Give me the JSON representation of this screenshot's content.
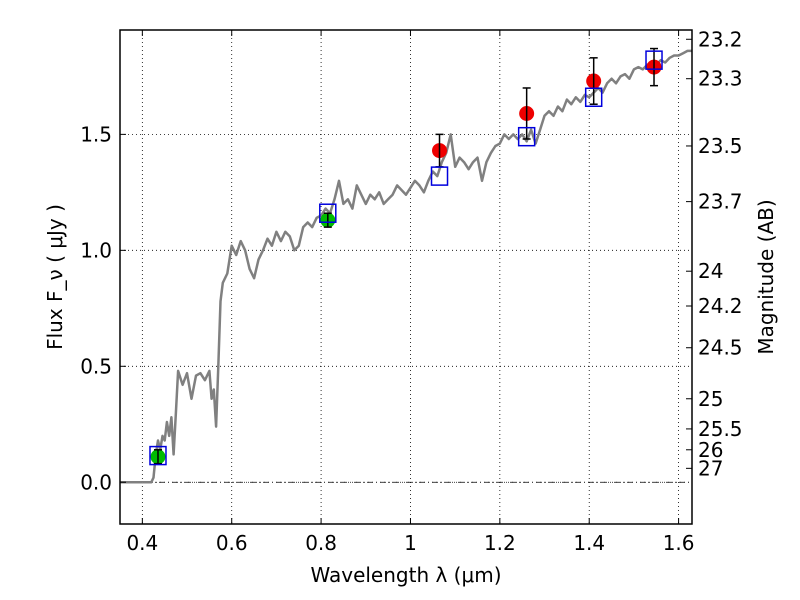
{
  "chart_data": {
    "type": "scatter",
    "xlabel": "Wavelength λ (μm)",
    "ylabel": "Flux F_ν ( μJy )",
    "ylabel_right": "Magnitude (AB)",
    "xlim": [
      0.35,
      1.63
    ],
    "ylim": [
      -0.18,
      1.95
    ],
    "grid": true,
    "x_ticks": [
      {
        "value": 0.4,
        "label": "0.4"
      },
      {
        "value": 0.6,
        "label": "0.6"
      },
      {
        "value": 0.8,
        "label": "0.8"
      },
      {
        "value": 1.0,
        "label": "1"
      },
      {
        "value": 1.2,
        "label": "1.2"
      },
      {
        "value": 1.4,
        "label": "1.4"
      },
      {
        "value": 1.6,
        "label": "1.6"
      }
    ],
    "y_ticks": [
      {
        "value": 0.0,
        "label": "0.0"
      },
      {
        "value": 0.5,
        "label": "0.5"
      },
      {
        "value": 1.0,
        "label": "1.0"
      },
      {
        "value": 1.5,
        "label": "1.5"
      }
    ],
    "right_ticks": [
      {
        "label": "23.2",
        "flux": 1.91
      },
      {
        "label": "23.3",
        "flux": 1.74
      },
      {
        "label": "23.5",
        "flux": 1.45
      },
      {
        "label": "23.7",
        "flux": 1.21
      },
      {
        "label": "24",
        "flux": 0.91
      },
      {
        "label": "24.2",
        "flux": 0.76
      },
      {
        "label": "24.5",
        "flux": 0.58
      },
      {
        "label": "25",
        "flux": 0.36
      },
      {
        "label": "25.5",
        "flux": 0.23
      },
      {
        "label": "26",
        "flux": 0.14
      },
      {
        "label": "27",
        "flux": 0.06
      }
    ],
    "model_spectrum": {
      "color": "#808080",
      "points": [
        [
          0.35,
          0.0
        ],
        [
          0.42,
          0.0
        ],
        [
          0.425,
          0.02
        ],
        [
          0.43,
          0.12
        ],
        [
          0.435,
          0.18
        ],
        [
          0.44,
          0.14
        ],
        [
          0.445,
          0.2
        ],
        [
          0.45,
          0.18
        ],
        [
          0.455,
          0.26
        ],
        [
          0.46,
          0.2
        ],
        [
          0.465,
          0.28
        ],
        [
          0.47,
          0.12
        ],
        [
          0.475,
          0.3
        ],
        [
          0.48,
          0.48
        ],
        [
          0.49,
          0.42
        ],
        [
          0.5,
          0.47
        ],
        [
          0.51,
          0.36
        ],
        [
          0.52,
          0.46
        ],
        [
          0.53,
          0.47
        ],
        [
          0.54,
          0.44
        ],
        [
          0.55,
          0.48
        ],
        [
          0.555,
          0.36
        ],
        [
          0.56,
          0.4
        ],
        [
          0.565,
          0.24
        ],
        [
          0.57,
          0.5
        ],
        [
          0.575,
          0.78
        ],
        [
          0.58,
          0.86
        ],
        [
          0.59,
          0.9
        ],
        [
          0.6,
          1.02
        ],
        [
          0.61,
          0.98
        ],
        [
          0.62,
          1.04
        ],
        [
          0.63,
          1.0
        ],
        [
          0.64,
          0.92
        ],
        [
          0.65,
          0.88
        ],
        [
          0.66,
          0.96
        ],
        [
          0.67,
          1.0
        ],
        [
          0.68,
          1.05
        ],
        [
          0.69,
          1.02
        ],
        [
          0.7,
          1.08
        ],
        [
          0.71,
          1.04
        ],
        [
          0.72,
          1.08
        ],
        [
          0.73,
          1.06
        ],
        [
          0.74,
          1.0
        ],
        [
          0.75,
          1.02
        ],
        [
          0.76,
          1.1
        ],
        [
          0.77,
          1.12
        ],
        [
          0.78,
          1.1
        ],
        [
          0.79,
          1.14
        ],
        [
          0.8,
          1.15
        ],
        [
          0.81,
          1.18
        ],
        [
          0.82,
          1.16
        ],
        [
          0.83,
          1.22
        ],
        [
          0.84,
          1.3
        ],
        [
          0.85,
          1.2
        ],
        [
          0.86,
          1.22
        ],
        [
          0.87,
          1.18
        ],
        [
          0.88,
          1.28
        ],
        [
          0.89,
          1.24
        ],
        [
          0.9,
          1.2
        ],
        [
          0.91,
          1.24
        ],
        [
          0.92,
          1.22
        ],
        [
          0.93,
          1.25
        ],
        [
          0.94,
          1.2
        ],
        [
          0.95,
          1.22
        ],
        [
          0.96,
          1.24
        ],
        [
          0.97,
          1.28
        ],
        [
          0.98,
          1.26
        ],
        [
          0.99,
          1.24
        ],
        [
          1.0,
          1.27
        ],
        [
          1.01,
          1.3
        ],
        [
          1.02,
          1.28
        ],
        [
          1.03,
          1.25
        ],
        [
          1.04,
          1.3
        ],
        [
          1.05,
          1.34
        ],
        [
          1.06,
          1.32
        ],
        [
          1.07,
          1.38
        ],
        [
          1.08,
          1.42
        ],
        [
          1.09,
          1.5
        ],
        [
          1.1,
          1.36
        ],
        [
          1.11,
          1.4
        ],
        [
          1.12,
          1.38
        ],
        [
          1.13,
          1.35
        ],
        [
          1.14,
          1.38
        ],
        [
          1.15,
          1.4
        ],
        [
          1.16,
          1.3
        ],
        [
          1.17,
          1.38
        ],
        [
          1.18,
          1.42
        ],
        [
          1.19,
          1.45
        ],
        [
          1.2,
          1.46
        ],
        [
          1.21,
          1.5
        ],
        [
          1.22,
          1.48
        ],
        [
          1.23,
          1.5
        ],
        [
          1.24,
          1.48
        ],
        [
          1.25,
          1.5
        ],
        [
          1.26,
          1.47
        ],
        [
          1.27,
          1.52
        ],
        [
          1.28,
          1.46
        ],
        [
          1.29,
          1.52
        ],
        [
          1.3,
          1.58
        ],
        [
          1.31,
          1.6
        ],
        [
          1.32,
          1.58
        ],
        [
          1.33,
          1.62
        ],
        [
          1.34,
          1.6
        ],
        [
          1.35,
          1.65
        ],
        [
          1.36,
          1.63
        ],
        [
          1.37,
          1.66
        ],
        [
          1.38,
          1.64
        ],
        [
          1.39,
          1.67
        ],
        [
          1.4,
          1.66
        ],
        [
          1.41,
          1.68
        ],
        [
          1.42,
          1.7
        ],
        [
          1.43,
          1.68
        ],
        [
          1.44,
          1.72
        ],
        [
          1.45,
          1.74
        ],
        [
          1.46,
          1.72
        ],
        [
          1.47,
          1.75
        ],
        [
          1.48,
          1.76
        ],
        [
          1.49,
          1.74
        ],
        [
          1.5,
          1.78
        ],
        [
          1.51,
          1.79
        ],
        [
          1.52,
          1.78
        ],
        [
          1.53,
          1.8
        ],
        [
          1.54,
          1.81
        ],
        [
          1.55,
          1.8
        ],
        [
          1.56,
          1.82
        ],
        [
          1.57,
          1.81
        ],
        [
          1.58,
          1.83
        ],
        [
          1.59,
          1.84
        ],
        [
          1.6,
          1.84
        ],
        [
          1.61,
          1.85
        ],
        [
          1.62,
          1.86
        ],
        [
          1.63,
          1.86
        ]
      ]
    },
    "series": [
      {
        "marker": "circle",
        "color": "#00bb00",
        "points": [
          {
            "x": 0.435,
            "y": 0.11,
            "err": 0.03
          },
          {
            "x": 0.815,
            "y": 1.13,
            "err": 0.03
          }
        ]
      },
      {
        "marker": "circle",
        "color": "#ee0000",
        "points": [
          {
            "x": 1.065,
            "y": 1.43,
            "err": 0.07
          },
          {
            "x": 1.26,
            "y": 1.59,
            "err": 0.11
          },
          {
            "x": 1.41,
            "y": 1.73,
            "err": 0.1
          },
          {
            "x": 1.545,
            "y": 1.79,
            "err": 0.08
          }
        ]
      },
      {
        "marker": "square",
        "color": "#0000dd",
        "points": [
          {
            "x": 0.435,
            "y": 0.115
          },
          {
            "x": 0.815,
            "y": 1.16
          },
          {
            "x": 1.065,
            "y": 1.32
          },
          {
            "x": 1.26,
            "y": 1.49
          },
          {
            "x": 1.41,
            "y": 1.66
          },
          {
            "x": 1.545,
            "y": 1.82
          }
        ]
      }
    ]
  }
}
